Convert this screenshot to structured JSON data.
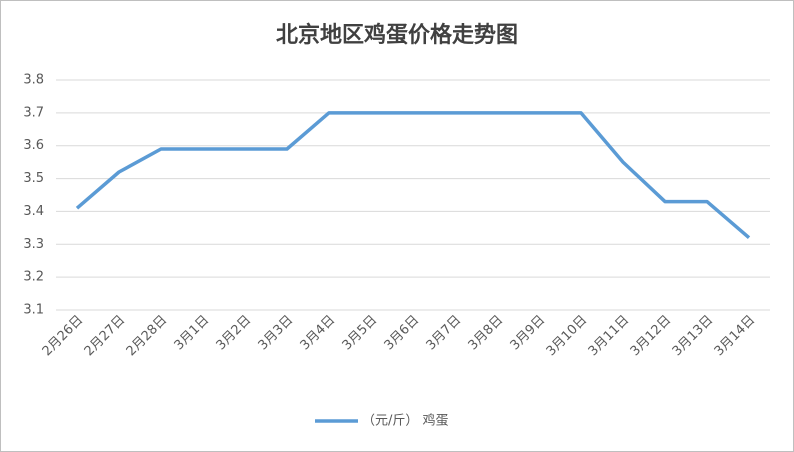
{
  "chart_data": {
    "type": "line",
    "title": "北京地区鸡蛋价格走势图",
    "categories": [
      "2月26日",
      "2月27日",
      "2月28日",
      "3月1日",
      "3月2日",
      "3月3日",
      "3月4日",
      "3月5日",
      "3月6日",
      "3月7日",
      "3月8日",
      "3月9日",
      "3月10日",
      "3月11日",
      "3月12日",
      "3月13日",
      "3月14日"
    ],
    "series": [
      {
        "name": "（元/斤） 鸡蛋",
        "color": "#5b9bd5",
        "values": [
          3.41,
          3.52,
          3.59,
          3.59,
          3.59,
          3.59,
          3.7,
          3.7,
          3.7,
          3.7,
          3.7,
          3.7,
          3.7,
          3.55,
          3.43,
          3.43,
          3.32
        ]
      }
    ],
    "ylim": [
      3.1,
      3.8
    ],
    "yticks": [
      3.1,
      3.2,
      3.3,
      3.4,
      3.5,
      3.6,
      3.7,
      3.8
    ],
    "grid": true,
    "legend": "bottom"
  }
}
